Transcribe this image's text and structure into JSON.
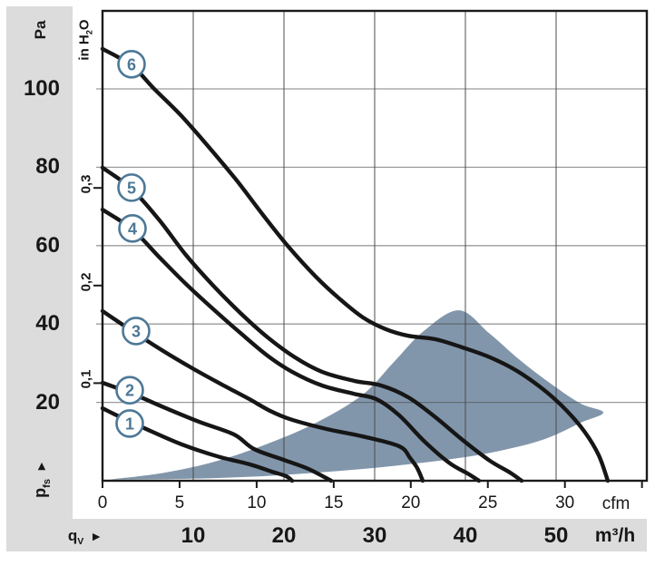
{
  "colors": {
    "curve": "#161616",
    "region": "#8296ab",
    "grid": "#4a4a4a",
    "border": "#1a1a1a",
    "band": "#dcdcdc",
    "accent_circle": "#4d7897",
    "text": "#171717"
  },
  "icons": {
    "axis_arrow": "►"
  },
  "y_axis": {
    "unit": "Pa",
    "pa_ticks": [
      100,
      80,
      60,
      40,
      20
    ],
    "secondary_unit": {
      "pre": "in H",
      "sub": "2",
      "post": "O"
    },
    "inh2o_ticks": [
      {
        "label": "0,3",
        "value": 0.3
      },
      {
        "label": "0,2",
        "value": 0.2
      },
      {
        "label": "0,1",
        "value": 0.1
      }
    ],
    "title": {
      "text": "p",
      "sub": "fs"
    }
  },
  "x_axis": {
    "cfm_ticks": [
      0,
      5,
      10,
      15,
      20,
      25,
      30
    ],
    "cfm_tick_marks": [
      0,
      5,
      10,
      15,
      20,
      25,
      30,
      35
    ],
    "cfm_unit": "cfm",
    "m3h_ticks": [
      10,
      20,
      30,
      40,
      50
    ],
    "m3h_unit": "m³/h",
    "title": {
      "text": "q",
      "sub": "V"
    }
  },
  "chart_data": {
    "type": "line",
    "x_unit": "m³/h",
    "y_unit": "Pa",
    "x_range": [
      0,
      60
    ],
    "y_range": [
      0,
      120
    ],
    "grid": true,
    "series": [
      {
        "name": "1",
        "label_pos": [
          3.0,
          14.6
        ],
        "points": [
          [
            0,
            18.5
          ],
          [
            2.0,
            16.2
          ],
          [
            5.0,
            13.0
          ],
          [
            8.7,
            9.3
          ],
          [
            12.7,
            6.2
          ],
          [
            16.2,
            4.2
          ],
          [
            18.7,
            2.3
          ],
          [
            20.2,
            1.2
          ],
          [
            20.9,
            0
          ]
        ]
      },
      {
        "name": "2",
        "label_pos": [
          3.0,
          23.1
        ],
        "points": [
          [
            0,
            25.0
          ],
          [
            3.3,
            22.2
          ],
          [
            6.7,
            18.8
          ],
          [
            10.7,
            15.0
          ],
          [
            14.5,
            11.8
          ],
          [
            16.7,
            8.1
          ],
          [
            20.0,
            5.3
          ],
          [
            22.7,
            3.0
          ],
          [
            25.2,
            0
          ]
        ]
      },
      {
        "name": "3",
        "label_pos": [
          3.7,
          38.2
        ],
        "points": [
          [
            0,
            43.3
          ],
          [
            3.4,
            38.0
          ],
          [
            6.7,
            33.1
          ],
          [
            9.9,
            28.7
          ],
          [
            13.2,
            24.5
          ],
          [
            16.2,
            20.8
          ],
          [
            18.5,
            17.8
          ],
          [
            20.7,
            15.7
          ],
          [
            24.7,
            13.2
          ],
          [
            28.7,
            11.3
          ],
          [
            32.7,
            8.8
          ],
          [
            33.9,
            5.8
          ],
          [
            34.7,
            3.2
          ],
          [
            35.3,
            0
          ]
        ]
      },
      {
        "name": "4",
        "label_pos": [
          3.3,
          64.4
        ],
        "points": [
          [
            0,
            69.2
          ],
          [
            3.3,
            64.1
          ],
          [
            6.2,
            57.2
          ],
          [
            9.2,
            50.2
          ],
          [
            12.2,
            43.8
          ],
          [
            15.2,
            37.7
          ],
          [
            18.2,
            31.9
          ],
          [
            20.9,
            27.8
          ],
          [
            24.2,
            24.3
          ],
          [
            27.7,
            22.2
          ],
          [
            30.2,
            20.8
          ],
          [
            32.7,
            16.7
          ],
          [
            35.5,
            10.0
          ],
          [
            38.2,
            4.6
          ],
          [
            40.2,
            1.9
          ],
          [
            41.5,
            0
          ]
        ]
      },
      {
        "name": "5",
        "label_pos": [
          3.2,
          74.8
        ],
        "points": [
          [
            0,
            79.9
          ],
          [
            3.2,
            74.5
          ],
          [
            6.2,
            66.7
          ],
          [
            9.2,
            57.6
          ],
          [
            12.2,
            49.8
          ],
          [
            15.2,
            42.8
          ],
          [
            18.2,
            36.6
          ],
          [
            21.2,
            31.5
          ],
          [
            24.2,
            27.8
          ],
          [
            27.7,
            25.5
          ],
          [
            30.7,
            24.3
          ],
          [
            33.7,
            21.3
          ],
          [
            36.7,
            16.2
          ],
          [
            39.7,
            10.4
          ],
          [
            42.7,
            5.1
          ],
          [
            44.9,
            2.1
          ],
          [
            46.2,
            0
          ]
        ]
      },
      {
        "name": "6",
        "label_pos": [
          3.2,
          106.3
        ],
        "points": [
          [
            0,
            110.2
          ],
          [
            3.2,
            106.0
          ],
          [
            5.7,
            100.0
          ],
          [
            8.7,
            93.1
          ],
          [
            11.7,
            85.2
          ],
          [
            14.7,
            76.9
          ],
          [
            17.7,
            67.8
          ],
          [
            20.5,
            59.7
          ],
          [
            23.5,
            52.1
          ],
          [
            26.2,
            46.3
          ],
          [
            28.7,
            41.7
          ],
          [
            31.2,
            38.7
          ],
          [
            33.7,
            37.0
          ],
          [
            36.7,
            36.1
          ],
          [
            39.7,
            34.0
          ],
          [
            42.7,
            31.5
          ],
          [
            45.7,
            28.0
          ],
          [
            48.7,
            23.1
          ],
          [
            51.2,
            17.8
          ],
          [
            53.2,
            12.3
          ],
          [
            54.7,
            6.5
          ],
          [
            55.7,
            0
          ]
        ]
      }
    ],
    "operating_region": {
      "points": [
        [
          0.7,
          0.3
        ],
        [
          6.7,
          2.0
        ],
        [
          12.7,
          5.1
        ],
        [
          18.7,
          9.9
        ],
        [
          23.7,
          15.0
        ],
        [
          28.7,
          22.0
        ],
        [
          32.0,
          30.0
        ],
        [
          35.4,
          38.2
        ],
        [
          39.3,
          43.5
        ],
        [
          42.7,
          37.5
        ],
        [
          46.0,
          30.8
        ],
        [
          49.4,
          24.8
        ],
        [
          52.7,
          19.7
        ],
        [
          55.2,
          17.4
        ],
        [
          52.7,
          14.8
        ],
        [
          48.7,
          10.6
        ],
        [
          43.7,
          7.6
        ],
        [
          38.7,
          5.6
        ],
        [
          33.7,
          4.2
        ],
        [
          28.7,
          3.0
        ],
        [
          19.4,
          1.4
        ],
        [
          12.7,
          0.7
        ],
        [
          6.7,
          0.4
        ]
      ]
    }
  }
}
